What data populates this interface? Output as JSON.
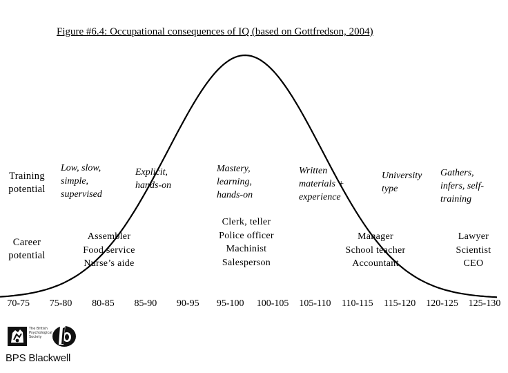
{
  "title": "Figure #6.4: Occupational consequences of IQ (based on Gottfredson, 2004)",
  "row_labels": {
    "training": [
      "Training",
      "potential"
    ],
    "career": [
      "Career",
      "potential"
    ]
  },
  "training_potential": [
    [
      "Low, slow,",
      "simple,",
      "supervised"
    ],
    [
      "Explicit,",
      "hands-on"
    ],
    [
      "Mastery,",
      "learning,",
      "hands-on"
    ],
    [
      "Written",
      "materials +",
      "experience"
    ],
    [
      "University",
      "type"
    ],
    [
      "Gathers,",
      "infers, self-",
      "training"
    ]
  ],
  "career_potential": [
    [
      "Assembler",
      "Food service",
      "Nurse’s aide"
    ],
    [
      "Clerk, teller",
      "Police officer",
      "Machinist",
      "Salesperson"
    ],
    [
      "Manager",
      "School teacher",
      "Accountant"
    ],
    [
      "Lawyer",
      "Scientist",
      "CEO"
    ]
  ],
  "iq_ranges": [
    "70-75",
    "75-80",
    "80-85",
    "85-90",
    "90-95",
    "95-100",
    "100-105",
    "105-110",
    "110-115",
    "115-120",
    "120-125",
    "125-130"
  ],
  "logo": {
    "name": "BPS Blackwell",
    "society_text": "The British Psychological Society",
    "icons": [
      "bps-crest-icon",
      "blackwell-b-icon"
    ]
  },
  "colors": {
    "ink": "#000000",
    "background": "#ffffff"
  }
}
